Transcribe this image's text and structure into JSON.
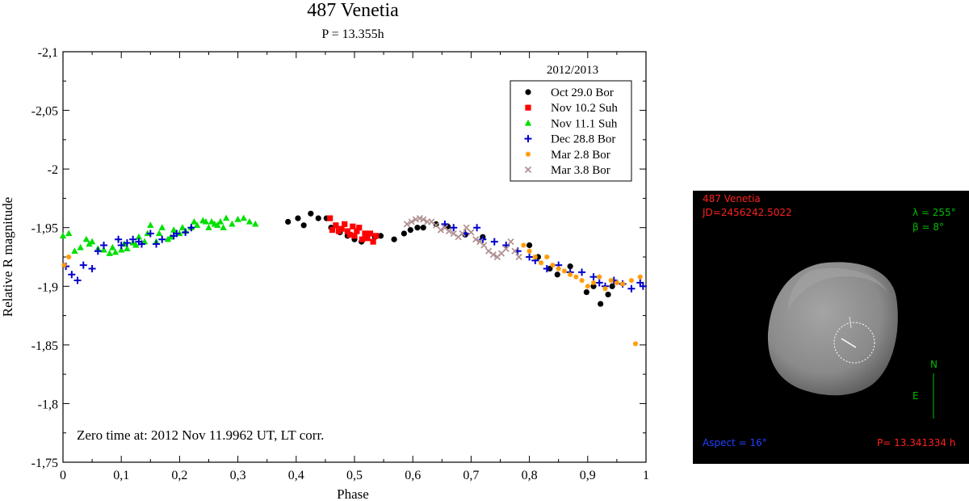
{
  "chart_data": {
    "type": "scatter",
    "title": "487 Venetia",
    "subtitle": "P = 13.355h",
    "xlabel": "Phase",
    "ylabel": "Relative R magnitude",
    "xlim": [
      0,
      1
    ],
    "ylim": [
      -2.1,
      -1.75
    ],
    "y_inverted": true,
    "grid": false,
    "x_ticks": [
      "0",
      "0,1",
      "0,2",
      "0,3",
      "0,4",
      "0,5",
      "0,6",
      "0,7",
      "0,8",
      "0,9",
      "1"
    ],
    "y_ticks": [
      "-2,1",
      "-2,05",
      "-2",
      "-1,95",
      "-1,9",
      "-1,85",
      "-1,8",
      "-1,75"
    ],
    "x_tick_values": [
      0,
      0.1,
      0.2,
      0.3,
      0.4,
      0.5,
      0.6,
      0.7,
      0.8,
      0.9,
      1.0
    ],
    "y_tick_values": [
      -2.1,
      -2.05,
      -2.0,
      -1.95,
      -1.9,
      -1.85,
      -1.8,
      -1.75
    ],
    "legend_title": "2012/2013",
    "legend_position": "top-right",
    "annotation": "Zero time at: 2012 Nov 11.9962 UT, LT corr.",
    "series": [
      {
        "name": "Oct 29.0 Bor",
        "marker": "circle",
        "color": "#000000",
        "x": [
          0.386,
          0.403,
          0.413,
          0.425,
          0.438,
          0.452,
          0.46,
          0.475,
          0.488,
          0.5,
          0.512,
          0.52,
          0.535,
          0.545,
          0.568,
          0.585,
          0.596,
          0.608,
          0.618,
          0.64,
          0.66,
          0.69,
          0.72,
          0.8,
          0.815,
          0.835,
          0.848,
          0.87,
          0.898,
          0.91,
          0.922,
          0.935,
          0.942
        ],
        "y": [
          -1.955,
          -1.958,
          -1.952,
          -1.962,
          -1.958,
          -1.958,
          -1.95,
          -1.946,
          -1.943,
          -1.94,
          -1.938,
          -1.944,
          -1.942,
          -1.943,
          -1.94,
          -1.945,
          -1.948,
          -1.95,
          -1.95,
          -1.953,
          -1.951,
          -1.944,
          -1.942,
          -1.935,
          -1.925,
          -1.915,
          -1.91,
          -1.917,
          -1.895,
          -1.9,
          -1.885,
          -1.893,
          -1.9
        ]
      },
      {
        "name": "Nov 10.2 Suh",
        "marker": "square",
        "color": "#ff0000",
        "x": [
          0.458,
          0.462,
          0.468,
          0.473,
          0.478,
          0.483,
          0.488,
          0.492,
          0.497,
          0.5,
          0.504,
          0.508,
          0.513,
          0.518,
          0.522,
          0.527,
          0.532,
          0.537
        ],
        "y": [
          -1.958,
          -1.948,
          -1.952,
          -1.947,
          -1.949,
          -1.953,
          -1.947,
          -1.944,
          -1.951,
          -1.943,
          -1.947,
          -1.95,
          -1.94,
          -1.945,
          -1.941,
          -1.945,
          -1.938,
          -1.943
        ]
      },
      {
        "name": "Nov 11.1 Suh",
        "marker": "triangle",
        "color": "#00e000",
        "x": [
          0.0,
          0.01,
          0.02,
          0.03,
          0.04,
          0.045,
          0.05,
          0.06,
          0.07,
          0.08,
          0.085,
          0.09,
          0.1,
          0.105,
          0.11,
          0.12,
          0.125,
          0.13,
          0.14,
          0.145,
          0.15,
          0.16,
          0.165,
          0.17,
          0.18,
          0.185,
          0.19,
          0.2,
          0.205,
          0.21,
          0.22,
          0.225,
          0.23,
          0.24,
          0.245,
          0.25,
          0.255,
          0.26,
          0.265,
          0.27,
          0.275,
          0.28,
          0.29,
          0.3,
          0.31,
          0.32,
          0.33
        ],
        "y": [
          -1.943,
          -1.945,
          -1.93,
          -1.933,
          -1.94,
          -1.936,
          -1.938,
          -1.932,
          -1.931,
          -1.928,
          -1.933,
          -1.929,
          -1.931,
          -1.936,
          -1.932,
          -1.937,
          -1.935,
          -1.942,
          -1.938,
          -1.945,
          -1.952,
          -1.938,
          -1.945,
          -1.95,
          -1.94,
          -1.942,
          -1.948,
          -1.945,
          -1.95,
          -1.947,
          -1.95,
          -1.955,
          -1.952,
          -1.956,
          -1.955,
          -1.95,
          -1.955,
          -1.953,
          -1.952,
          -1.955,
          -1.95,
          -1.958,
          -1.953,
          -1.957,
          -1.958,
          -1.955,
          -1.953
        ]
      },
      {
        "name": "Dec 28.8 Bor",
        "marker": "plus",
        "color": "#0000cc",
        "x": [
          0.005,
          0.015,
          0.025,
          0.035,
          0.05,
          0.06,
          0.07,
          0.095,
          0.1,
          0.11,
          0.12,
          0.13,
          0.135,
          0.15,
          0.16,
          0.17,
          0.19,
          0.195,
          0.21,
          0.22,
          0.655,
          0.67,
          0.69,
          0.71,
          0.72,
          0.74,
          0.76,
          0.78,
          0.8,
          0.81,
          0.83,
          0.85,
          0.87,
          0.89,
          0.91,
          0.92,
          0.93,
          0.945,
          0.96,
          0.975,
          0.99,
          0.995
        ],
        "y": [
          -1.917,
          -1.91,
          -1.905,
          -1.918,
          -1.915,
          -1.93,
          -1.935,
          -1.94,
          -1.935,
          -1.937,
          -1.94,
          -1.938,
          -1.936,
          -1.945,
          -1.936,
          -1.94,
          -1.943,
          -1.945,
          -1.946,
          -1.95,
          -1.953,
          -1.95,
          -1.945,
          -1.95,
          -1.94,
          -1.938,
          -1.935,
          -1.93,
          -1.925,
          -1.922,
          -1.915,
          -1.918,
          -1.912,
          -1.912,
          -1.908,
          -1.903,
          -1.9,
          -1.905,
          -1.902,
          -1.898,
          -1.903,
          -1.9
        ]
      },
      {
        "name": "Mar 2.8 Bor",
        "marker": "star",
        "color": "#ff9900",
        "x": [
          0.002,
          0.01,
          0.79,
          0.8,
          0.81,
          0.82,
          0.83,
          0.84,
          0.85,
          0.86,
          0.87,
          0.88,
          0.89,
          0.9,
          0.91,
          0.92,
          0.93,
          0.94,
          0.95,
          0.96,
          0.975,
          0.982,
          0.99
        ],
        "y": [
          -1.918,
          -1.925,
          -1.935,
          -1.93,
          -1.925,
          -1.92,
          -1.925,
          -1.918,
          -1.915,
          -1.913,
          -1.91,
          -1.908,
          -1.905,
          -1.9,
          -1.903,
          -1.908,
          -1.898,
          -1.905,
          -1.903,
          -1.902,
          -1.905,
          -1.851,
          -1.908
        ]
      },
      {
        "name": "Mar 3.8 Bor",
        "marker": "x",
        "color": "#b09090",
        "x": [
          0.59,
          0.598,
          0.605,
          0.612,
          0.618,
          0.625,
          0.632,
          0.64,
          0.648,
          0.655,
          0.662,
          0.67,
          0.678,
          0.685,
          0.692,
          0.7,
          0.708,
          0.715,
          0.722,
          0.73,
          0.738,
          0.745,
          0.752,
          0.76,
          0.768,
          0.775,
          0.782
        ],
        "y": [
          -1.953,
          -1.955,
          -1.957,
          -1.958,
          -1.957,
          -1.955,
          -1.955,
          -1.952,
          -1.948,
          -1.95,
          -1.947,
          -1.945,
          -1.942,
          -1.945,
          -1.95,
          -1.946,
          -1.94,
          -1.938,
          -1.935,
          -1.93,
          -1.927,
          -1.925,
          -1.928,
          -1.932,
          -1.938,
          -1.93,
          -1.925
        ]
      }
    ]
  },
  "model_panel": {
    "title": "487 Venetia",
    "jd": "JD=2456242.5022",
    "lambda": "λ =  255°",
    "beta": "β =    8°",
    "north_label": "N",
    "east_label": "E",
    "aspect": "Aspect = 16°",
    "period": "P= 13.341334 h",
    "colors": {
      "title": "#ff2020",
      "angles": "#00bb00",
      "aspect": "#2040ff",
      "period": "#ff2020",
      "axes": "#00bb00",
      "background": "#000000"
    }
  }
}
